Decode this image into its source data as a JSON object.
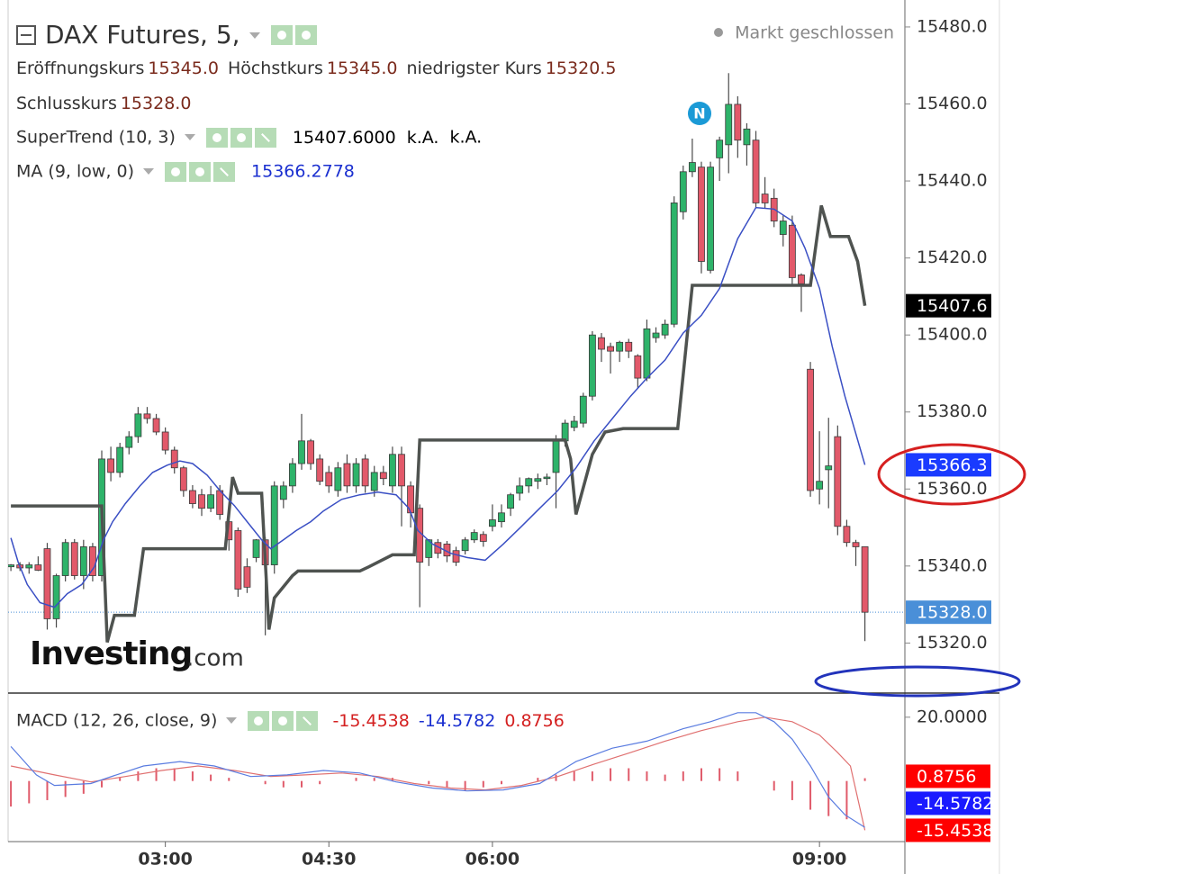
{
  "chart_data": {
    "type": "candlestick",
    "title": "DAX Futures, 5,",
    "status": "Markt geschlossen",
    "ohlc_legend": [
      {
        "label": "Eröffnungskurs",
        "value": "15345.0"
      },
      {
        "label": "Höchstkurs",
        "value": "15345.0"
      },
      {
        "label": "niedrigster Kurs",
        "value": "15320.5"
      },
      {
        "label": "Schlusskurs",
        "value": "15328.0"
      }
    ],
    "logo": [
      "Investing",
      ".com"
    ],
    "news_marker": "N",
    "up_color": "#2eb36a",
    "down_color": "#e2596a",
    "x": [
      95,
      100,
      105,
      110,
      115,
      120,
      125,
      130,
      135,
      140,
      145,
      150,
      155,
      160,
      165,
      170,
      175,
      180,
      185,
      190,
      195,
      200,
      205,
      210,
      215,
      220,
      225,
      230,
      235,
      240,
      245,
      250,
      255,
      260,
      265,
      270,
      275,
      280,
      285,
      290,
      295,
      300,
      305,
      310,
      315,
      320,
      325,
      330,
      335,
      340,
      345,
      350,
      355,
      360,
      365,
      370,
      375,
      380,
      385,
      390,
      395,
      400,
      405,
      410,
      415,
      420,
      425,
      430,
      435,
      440,
      445,
      450,
      455,
      460,
      465,
      470,
      475,
      480,
      485,
      490,
      495,
      500,
      505,
      510,
      515,
      520,
      525,
      530,
      535,
      540,
      545,
      550,
      555,
      560,
      565
    ],
    "open": [
      15339.8,
      15340.3,
      15339.5,
      15340.3,
      15344.5,
      15326.3,
      15337.5,
      15346.1,
      15337.5,
      15345.0,
      15337.5,
      15367.8,
      15364.3,
      15370.8,
      15373.6,
      15379.5,
      15378.3,
      15374.8,
      15370.1,
      15365.5,
      15359.6,
      15358.5,
      15355.0,
      15359.6,
      15351.5,
      15349.2,
      15339.8,
      15342.2,
      15346.8,
      15340.3,
      15357.3,
      15360.8,
      15366.6,
      15372.5,
      15367.8,
      15364.3,
      15359.6,
      15366.6,
      15360.8,
      15367.8,
      15359.6,
      15364.3,
      15360.8,
      15369.0,
      15360.8,
      15355.0,
      15342.2,
      15346.1,
      15345.7,
      15344.0,
      15344.0,
      15346.8,
      15348.2,
      15350.3,
      15351.5,
      15355.0,
      15358.9,
      15360.8,
      15362.0,
      15362.7,
      15364.3,
      15372.5,
      15376.0,
      15377.1,
      15384.1,
      15399.3,
      15397.0,
      15395.8,
      15398.1,
      15394.6,
      15388.8,
      15399.3,
      15400.0,
      15402.8,
      15432.0,
      15442.4,
      15443.6,
      15416.8,
      15446.0,
      15449.4,
      15459.9,
      15449.4,
      15450.6,
      15436.6,
      15435.5,
      15426.1,
      15428.5,
      15415.6,
      15391.1,
      15360.0,
      15365.0,
      15373.6,
      15350.3,
      15346.1,
      15345.0
    ],
    "high": [
      15340.5,
      15341.0,
      15341.0,
      15342.5,
      15346.0,
      15338.0,
      15347.0,
      15347.0,
      15346.8,
      15346.0,
      15370.0,
      15371.0,
      15372.0,
      15375.0,
      15381.3,
      15381.3,
      15379.5,
      15376.0,
      15371.0,
      15366.0,
      15361.0,
      15360.0,
      15360.8,
      15361.0,
      15353.0,
      15350.0,
      15342.0,
      15347.0,
      15347.5,
      15362.0,
      15362.0,
      15368.0,
      15379.5,
      15373.0,
      15369.0,
      15366.0,
      15367.0,
      15369.0,
      15368.0,
      15369.0,
      15366.0,
      15366.0,
      15371.0,
      15371.0,
      15362.0,
      15356.0,
      15347.0,
      15347.0,
      15346.5,
      15345.0,
      15347.5,
      15349.5,
      15349.0,
      15356.0,
      15356.0,
      15359.0,
      15363.0,
      15363.0,
      15364.0,
      15364.0,
      15374.0,
      15378.0,
      15379.0,
      15385.0,
      15401.0,
      15400.5,
      15398.0,
      15398.5,
      15399.0,
      15395.0,
      15404.0,
      15402.0,
      15404.0,
      15436.0,
      15444.0,
      15451.0,
      15445.0,
      15445.0,
      15451.5,
      15468.0,
      15462.0,
      15455.0,
      15453.0,
      15441.0,
      15438.0,
      15431.0,
      15431.0,
      15416.0,
      15393.0,
      15375.0,
      15378.5,
      15376.5,
      15352.0,
      15346.8,
      15345.0
    ],
    "low": [
      15338.7,
      15338.7,
      15338.0,
      15338.7,
      15323.5,
      15324.0,
      15336.0,
      15336.5,
      15334.0,
      15336.0,
      15336.0,
      15362.0,
      15363.0,
      15369.0,
      15372.0,
      15377.0,
      15374.0,
      15369.0,
      15364.0,
      15358.0,
      15355.0,
      15353.0,
      15354.0,
      15352.0,
      15344.0,
      15332.0,
      15333.0,
      15341.0,
      15322.0,
      15338.0,
      15355.0,
      15359.0,
      15365.0,
      15365.0,
      15361.0,
      15359.0,
      15358.0,
      15359.0,
      15359.0,
      15359.0,
      15358.0,
      15361.0,
      15359.0,
      15350.3,
      15350.0,
      15329.3,
      15340.0,
      15342.0,
      15341.0,
      15340.0,
      15343.0,
      15346.0,
      15345.0,
      15349.0,
      15350.0,
      15353.0,
      15357.0,
      15359.0,
      15360.0,
      15361.0,
      15355.0,
      15371.0,
      15375.0,
      15376.0,
      15383.0,
      15393.0,
      15390.0,
      15393.0,
      15394.0,
      15386.0,
      15388.0,
      15398.0,
      15399.0,
      15402.0,
      15430.0,
      15441.0,
      15416.0,
      15416.0,
      15440.0,
      15442.0,
      15446.0,
      15444.0,
      15433.0,
      15433.0,
      15428.0,
      15423.0,
      15413.0,
      15406.0,
      15358.0,
      15356.0,
      15355.0,
      15348.0,
      15345.0,
      15340.0,
      15320.5
    ],
    "close": [
      15340.3,
      15339.5,
      15340.3,
      15338.9,
      15326.3,
      15337.5,
      15346.1,
      15337.5,
      15345.0,
      15337.5,
      15367.8,
      15364.3,
      15370.8,
      15373.6,
      15379.5,
      15378.3,
      15374.8,
      15370.1,
      15365.5,
      15359.6,
      15356.2,
      15355.0,
      15358.5,
      15353.4,
      15346.8,
      15334.0,
      15334.5,
      15346.8,
      15340.3,
      15360.8,
      15360.8,
      15366.6,
      15372.5,
      15366.6,
      15362.0,
      15360.8,
      15365.5,
      15360.8,
      15366.6,
      15360.8,
      15364.3,
      15362.7,
      15369.0,
      15360.8,
      15353.8,
      15341.0,
      15346.8,
      15343.3,
      15342.6,
      15341.0,
      15346.8,
      15348.7,
      15346.4,
      15352.0,
      15353.8,
      15358.5,
      15360.8,
      15362.7,
      15362.7,
      15363.1,
      15372.5,
      15377.1,
      15377.6,
      15384.1,
      15400.0,
      15396.3,
      15395.8,
      15398.1,
      15395.8,
      15388.8,
      15401.6,
      15400.5,
      15402.8,
      15434.3,
      15442.4,
      15444.8,
      15419.1,
      15443.6,
      15450.6,
      15459.9,
      15450.6,
      15453.5,
      15434.3,
      15434.3,
      15429.6,
      15429.6,
      15414.9,
      15413.3,
      15359.6,
      15362.0,
      15366.0,
      15350.3,
      15346.1,
      15345.0,
      15328.0
    ],
    "xlim": [
      89,
      587
    ],
    "xticks": [
      {
        "value": 180,
        "label": "03:00"
      },
      {
        "value": 270,
        "label": "04:30"
      },
      {
        "value": 360,
        "label": "06:00"
      },
      {
        "value": 540,
        "label": "09:00"
      }
    ],
    "ylim": [
      15307,
      15487
    ],
    "yticks": [
      {
        "value": 15320,
        "label": "15320.0"
      },
      {
        "value": 15340,
        "label": "15340.0"
      },
      {
        "value": 15360,
        "label": "15360.0"
      },
      {
        "value": 15380,
        "label": "15380.0"
      },
      {
        "value": 15400,
        "label": "15400.0"
      },
      {
        "value": 15420,
        "label": "15420.0"
      },
      {
        "value": 15440,
        "label": "15440.0"
      },
      {
        "value": 15460,
        "label": "15460.0"
      },
      {
        "value": 15480,
        "label": "15480.0"
      }
    ],
    "supertrend": {
      "name": "SuperTrend (10, 3)",
      "legend_values": [
        "15407.6000",
        "k.A.",
        "k.A."
      ],
      "color": "#4f5350",
      "x": [
        95,
        145,
        148,
        152,
        163,
        168,
        213,
        217,
        220,
        233,
        237,
        240,
        250,
        253,
        287,
        292,
        305,
        317,
        320,
        400,
        403,
        406,
        415,
        422,
        432,
        462,
        470,
        535,
        541,
        546,
        556,
        561,
        565
      ],
      "values": [
        15355.6,
        15355.6,
        15320.2,
        15327.2,
        15327.2,
        15344.5,
        15344.5,
        15363.1,
        15358.9,
        15358.9,
        15323.5,
        15331.7,
        15337.5,
        15338.7,
        15338.7,
        15339.8,
        15342.9,
        15342.9,
        15372.7,
        15372.7,
        15367.8,
        15353.4,
        15369.0,
        15374.8,
        15375.7,
        15375.7,
        15412.9,
        15412.9,
        15433.6,
        15425.6,
        15425.6,
        15419.1,
        15407.6
      ]
    },
    "ma": {
      "name": "MA (9, low, 0)",
      "legend_values": [
        "15366.2778"
      ],
      "color": "#3a4fc4",
      "x": [
        95,
        99,
        104,
        111,
        119,
        126,
        134,
        141,
        146,
        151,
        158,
        166,
        173,
        181,
        188,
        195,
        203,
        210,
        218,
        225,
        233,
        238,
        245,
        252,
        260,
        267,
        277,
        287,
        297,
        307,
        314,
        319,
        327,
        337,
        346,
        356,
        366,
        376,
        386,
        396,
        406,
        416,
        426,
        436,
        445,
        455,
        465,
        475,
        485,
        495,
        505,
        515,
        525,
        532,
        540,
        547,
        554,
        565
      ],
      "values": [
        15347.3,
        15341.0,
        15335.2,
        15330.5,
        15329.3,
        15332.8,
        15335.2,
        15339.8,
        15346.8,
        15351.5,
        15356.2,
        15360.8,
        15364.3,
        15366.2,
        15367.3,
        15366.6,
        15363.6,
        15359.6,
        15355.7,
        15351.5,
        15346.8,
        15344.5,
        15346.8,
        15349.2,
        15351.5,
        15354.3,
        15357.3,
        15358.5,
        15359.2,
        15358.5,
        15355.0,
        15349.2,
        15345.7,
        15343.3,
        15342.2,
        15341.5,
        15345.7,
        15350.3,
        15355.0,
        15359.6,
        15365.5,
        15372.5,
        15378.3,
        15384.1,
        15388.8,
        15393.5,
        15400.5,
        15405.1,
        15412.1,
        15425.0,
        15433.1,
        15432.7,
        15429.6,
        15422.6,
        15412.1,
        15397.0,
        15384.1,
        15366.2778
      ]
    },
    "price_labels": [
      {
        "value": 15407.6,
        "label": "15407.6",
        "color": "#000000"
      },
      {
        "value": 15366.2778,
        "label": "15366.3",
        "color": "#1a3bff"
      },
      {
        "value": 15328.0,
        "label": "15328.0",
        "color": "#4a8fd8",
        "line": true
      }
    ],
    "macd": {
      "name": "MACD (12, 26, close, 9)",
      "legend_values": [
        {
          "text": "-15.4538",
          "color": "#d42020"
        },
        {
          "text": "-14.5782",
          "color": "#1a2fd0"
        },
        {
          "text": "0.8756",
          "color": "#d42020"
        }
      ],
      "ylim": [
        -19,
        27
      ],
      "yticks": [
        {
          "value": 20,
          "label": "20.0000"
        }
      ],
      "macd_line": {
        "color": "#5a7ce0",
        "x": [
          95,
          109,
          119,
          139,
          153,
          168,
          188,
          207,
          227,
          247,
          267,
          287,
          307,
          327,
          346,
          366,
          386,
          406,
          426,
          445,
          465,
          480,
          495,
          505,
          515,
          525,
          535,
          545,
          554,
          565
        ],
        "values": [
          10.8,
          1.9,
          -1.4,
          -0.8,
          1.9,
          4.7,
          6.1,
          4.7,
          1.4,
          1.9,
          3.3,
          2.5,
          -0.3,
          -2.2,
          -3.1,
          -2.8,
          -0.8,
          6.1,
          10.3,
          12.5,
          16.4,
          18.6,
          21.4,
          21.4,
          18.6,
          13.1,
          4.7,
          -5.0,
          -10.6,
          -14.5782
        ]
      },
      "signal_line": {
        "color": "#e07070",
        "x": [
          95,
          119,
          139,
          158,
          178,
          198,
          218,
          238,
          257,
          277,
          297,
          317,
          337,
          356,
          376,
          396,
          416,
          436,
          455,
          475,
          495,
          510,
          525,
          540,
          550,
          557,
          565
        ],
        "values": [
          4.7,
          1.9,
          -0.3,
          1.4,
          3.3,
          4.7,
          3.3,
          1.4,
          1.9,
          2.5,
          1.4,
          -0.8,
          -2.2,
          -2.8,
          -1.4,
          1.4,
          5.3,
          8.9,
          12.5,
          15.8,
          18.6,
          20.0,
          18.6,
          14.4,
          8.9,
          4.7,
          -15.4538
        ]
      },
      "histogram": {
        "color": "#e05a6a",
        "x": [
          95,
          105,
          115,
          125,
          135,
          145,
          155,
          165,
          175,
          185,
          195,
          205,
          215,
          225,
          235,
          245,
          255,
          265,
          275,
          285,
          295,
          305,
          315,
          325,
          335,
          345,
          355,
          365,
          375,
          385,
          395,
          405,
          415,
          425,
          435,
          445,
          455,
          465,
          475,
          485,
          495,
          505,
          515,
          525,
          535,
          545,
          555,
          565
        ],
        "values": [
          -8,
          -7,
          -6,
          -5,
          -4,
          -2,
          1,
          3,
          4,
          4,
          3,
          2,
          1,
          0,
          -1,
          -2,
          -2,
          -1,
          0,
          1,
          1,
          1,
          0,
          -1,
          -2,
          -3,
          -2,
          -1,
          0,
          1,
          2,
          3,
          3,
          4,
          4,
          3,
          2,
          3,
          4,
          4,
          3,
          0,
          -3,
          -6,
          -9,
          -11,
          -12,
          0.8756
        ]
      },
      "badges": [
        {
          "value": 0.8756,
          "label": "0.8756",
          "color": "#ff0000"
        },
        {
          "value": -14.5782,
          "label": "-14.5782",
          "color": "#1a1aff"
        },
        {
          "value": -15.4538,
          "label": "-15.4538",
          "color": "#ff0000"
        }
      ]
    }
  }
}
